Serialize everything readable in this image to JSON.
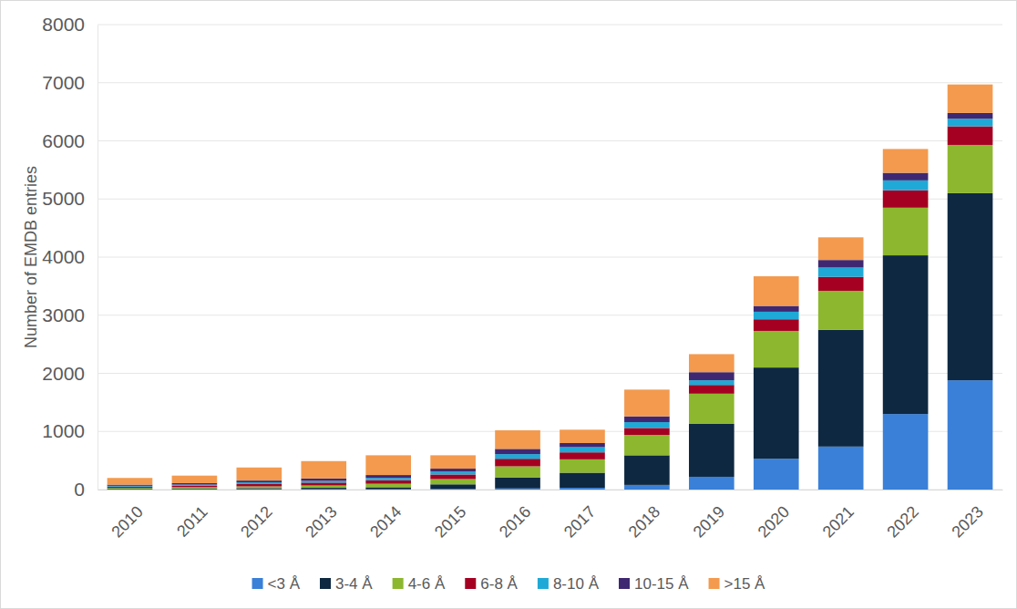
{
  "chart_data": {
    "type": "bar",
    "stacked": true,
    "grid": true,
    "legend": "bottom",
    "y_label": "Number of EMDB entries",
    "categories": [
      "2010",
      "2011",
      "2012",
      "2013",
      "2014",
      "2015",
      "2016",
      "2017",
      "2018",
      "2019",
      "2020",
      "2021",
      "2022",
      "2023"
    ],
    "series": [
      {
        "name": "<3 Å",
        "color": "#3a80d8",
        "values": [
          5,
          5,
          5,
          5,
          5,
          10,
          20,
          30,
          80,
          220,
          530,
          740,
          1300,
          1880
        ]
      },
      {
        "name": "3-4 Å",
        "color": "#0e2841",
        "values": [
          10,
          15,
          20,
          25,
          35,
          80,
          190,
          260,
          510,
          910,
          1570,
          2010,
          2730,
          3220
        ]
      },
      {
        "name": "4-6 Å",
        "color": "#8db72e",
        "values": [
          15,
          20,
          30,
          40,
          60,
          90,
          190,
          230,
          350,
          520,
          630,
          670,
          820,
          830
        ]
      },
      {
        "name": "6-8 Å",
        "color": "#a50021",
        "values": [
          20,
          25,
          40,
          50,
          60,
          80,
          130,
          120,
          120,
          150,
          200,
          240,
          300,
          320
        ]
      },
      {
        "name": "8-10 Å",
        "color": "#1fa9d6",
        "values": [
          15,
          20,
          30,
          30,
          40,
          50,
          80,
          90,
          100,
          80,
          130,
          160,
          170,
          130
        ]
      },
      {
        "name": "10-15 Å",
        "color": "#3f2871",
        "values": [
          20,
          25,
          30,
          40,
          50,
          50,
          90,
          70,
          100,
          140,
          100,
          130,
          130,
          100
        ]
      },
      {
        "name": ">15 Å",
        "color": "#f39a4f",
        "values": [
          115,
          130,
          225,
          300,
          340,
          230,
          320,
          230,
          460,
          310,
          510,
          390,
          410,
          490
        ]
      }
    ],
    "ylim": [
      0,
      8000
    ],
    "yticks": [
      0,
      1000,
      2000,
      3000,
      4000,
      5000,
      6000,
      7000,
      8000
    ]
  }
}
